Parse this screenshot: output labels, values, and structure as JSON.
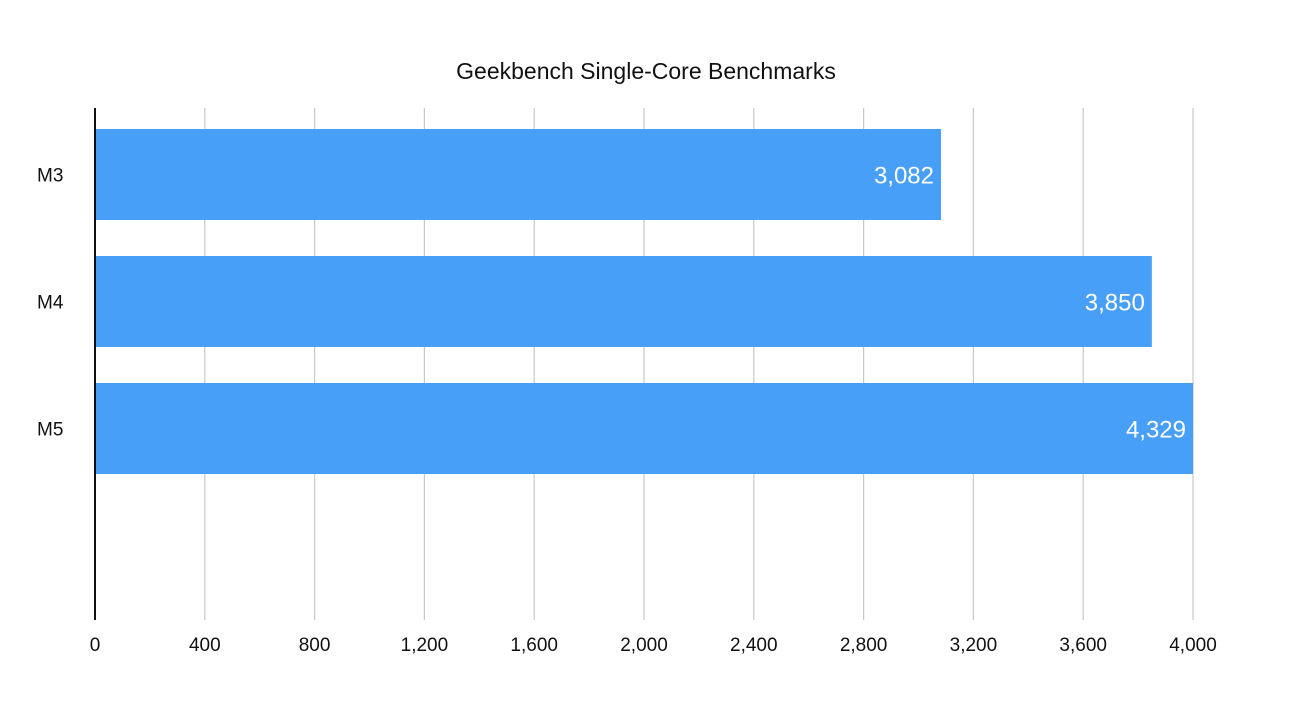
{
  "chart_data": {
    "type": "bar",
    "orientation": "horizontal",
    "title": "Geekbench Single-Core Benchmarks",
    "categories": [
      "M3",
      "M4",
      "M5"
    ],
    "values": [
      3082,
      3850,
      4329
    ],
    "value_labels": [
      "3,082",
      "3,850",
      "4,329"
    ],
    "xlim": [
      0,
      4000
    ],
    "x_ticks": [
      0,
      400,
      800,
      1200,
      1600,
      2000,
      2400,
      2800,
      3200,
      3600,
      4000
    ],
    "x_tick_labels": [
      "0",
      "400",
      "800",
      "1,200",
      "1,600",
      "2,000",
      "2,400",
      "2,800",
      "3,200",
      "3,600",
      "4,000"
    ],
    "xlabel": "",
    "ylabel": "",
    "grid": true,
    "legend": "none",
    "bar_color": "#479ff8"
  }
}
